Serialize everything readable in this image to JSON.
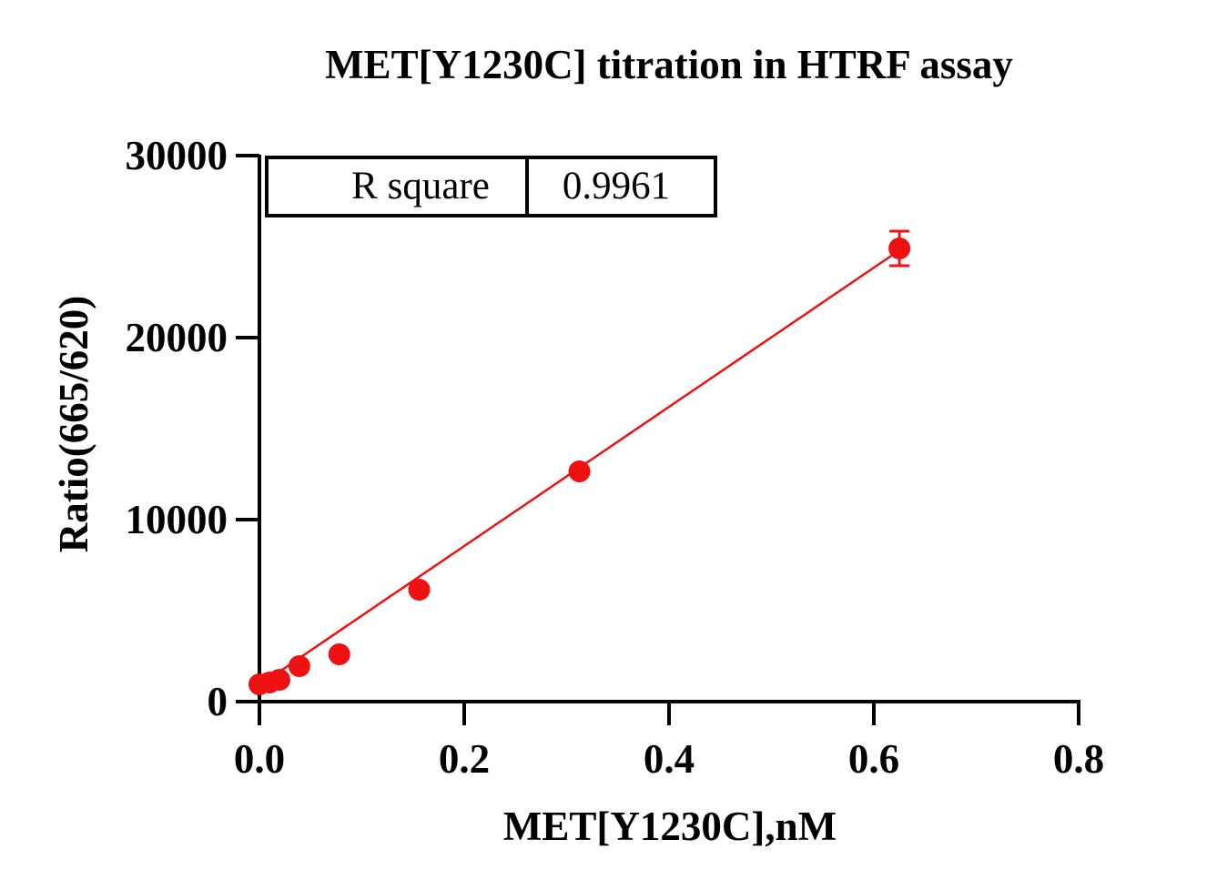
{
  "chart_data": {
    "type": "scatter",
    "title": "MET[Y1230C] titration in HTRF assay",
    "xlabel": "MET[Y1230C],nM",
    "ylabel": "Ratio(665/620)",
    "xlim": [
      0,
      0.8
    ],
    "ylim": [
      0,
      30000
    ],
    "x_ticks": [
      "0.0",
      "0.2",
      "0.4",
      "0.6",
      "0.8"
    ],
    "y_ticks": [
      "0",
      "10000",
      "20000",
      "30000"
    ],
    "series": [
      {
        "color": "#ee1111",
        "points": [
          {
            "x": 0.0,
            "y": 950,
            "err": 0
          },
          {
            "x": 0.0098,
            "y": 1050,
            "err": 0
          },
          {
            "x": 0.0195,
            "y": 1200,
            "err": 0
          },
          {
            "x": 0.039,
            "y": 1950,
            "err": 0
          },
          {
            "x": 0.078,
            "y": 2600,
            "err": 0
          },
          {
            "x": 0.156,
            "y": 6150,
            "err": 0
          },
          {
            "x": 0.3125,
            "y": 12650,
            "err": 0
          },
          {
            "x": 0.625,
            "y": 24900,
            "err": 950
          }
        ],
        "fit": {
          "type": "linear",
          "x_range": [
            0,
            0.625
          ],
          "y_range": [
            900,
            24800
          ]
        }
      }
    ],
    "annotation_table": {
      "label": "R square",
      "value": "0.9961"
    },
    "grid": false
  }
}
